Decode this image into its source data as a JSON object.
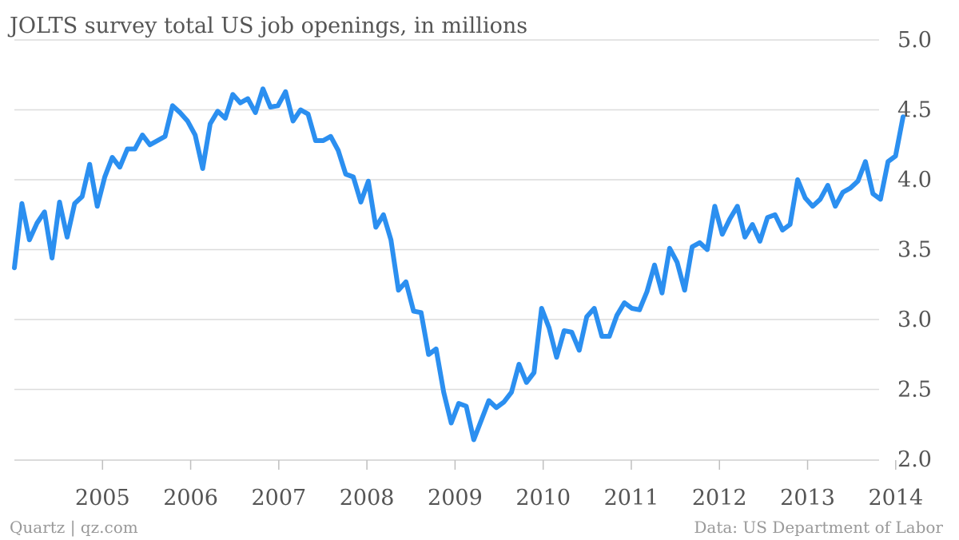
{
  "chart_data": {
    "type": "line",
    "title": "JOLTS survey total US job openings, in millions",
    "xlabel": "",
    "ylabel": "",
    "ylim": [
      2.0,
      5.0
    ],
    "yticks": [
      "2.0",
      "2.5",
      "3.0",
      "3.5",
      "4.0",
      "4.5",
      "5.0"
    ],
    "xticks": [
      "2005",
      "2006",
      "2007",
      "2008",
      "2009",
      "2010",
      "2011",
      "2012",
      "2013",
      "2014"
    ],
    "x_start": "2004-01",
    "x_end": "2014-02",
    "grid": true,
    "color": "#2b8ff0",
    "series": [
      {
        "values": [
          3.37,
          3.83,
          3.57,
          3.69,
          3.77,
          3.44,
          3.84,
          3.59,
          3.83,
          3.88,
          4.11,
          3.81,
          4.02,
          4.16,
          4.09,
          4.22,
          4.22,
          4.32,
          4.25,
          4.28,
          4.31,
          4.53,
          4.48,
          4.42,
          4.32,
          4.08,
          4.4,
          4.49,
          4.44,
          4.61,
          4.55,
          4.58,
          4.48,
          4.65,
          4.52,
          4.53,
          4.63,
          4.42,
          4.5,
          4.47,
          4.28,
          4.28,
          4.31,
          4.21,
          4.04,
          4.02,
          3.84,
          3.99,
          3.66,
          3.75,
          3.57,
          3.21,
          3.27,
          3.06,
          3.05,
          2.75,
          2.79,
          2.48,
          2.26,
          2.4,
          2.38,
          2.14,
          2.28,
          2.42,
          2.37,
          2.41,
          2.48,
          2.68,
          2.55,
          2.62,
          3.08,
          2.94,
          2.73,
          2.92,
          2.91,
          2.78,
          3.02,
          3.08,
          2.88,
          2.88,
          3.03,
          3.12,
          3.08,
          3.07,
          3.2,
          3.39,
          3.19,
          3.51,
          3.41,
          3.21,
          3.52,
          3.55,
          3.5,
          3.81,
          3.61,
          3.72,
          3.81,
          3.59,
          3.68,
          3.56,
          3.73,
          3.75,
          3.64,
          3.68,
          4.0,
          3.87,
          3.81,
          3.86,
          3.96,
          3.81,
          3.91,
          3.94,
          3.99,
          4.13,
          3.9,
          3.86,
          4.13,
          4.17,
          4.45
        ]
      }
    ]
  },
  "footer": {
    "left": "Quartz | qz.com",
    "right": "Data: US Department of Labor"
  }
}
